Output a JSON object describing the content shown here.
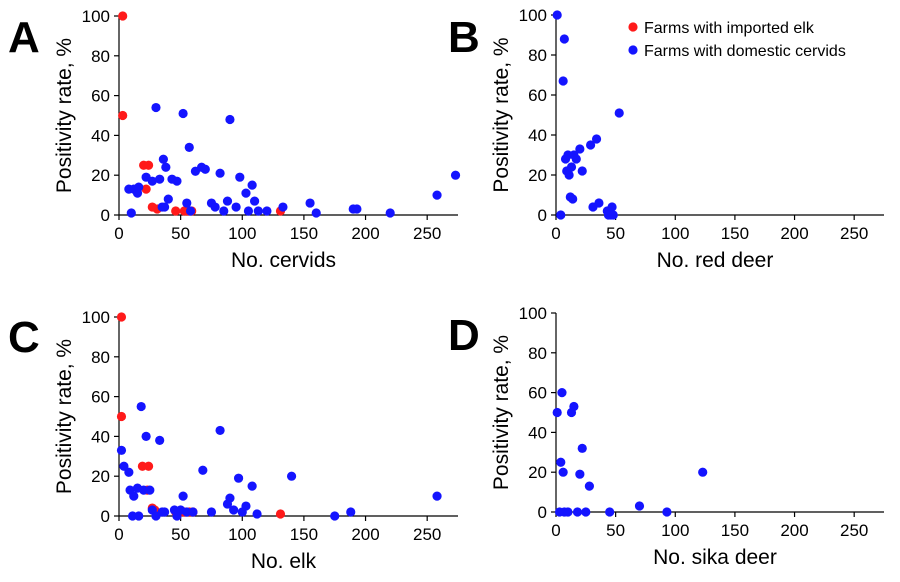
{
  "legend": {
    "items": [
      {
        "label": "Farms with imported elk",
        "color": "#ff1a1a"
      },
      {
        "label": "Farms with domestic cervids",
        "color": "#1414ff"
      }
    ]
  },
  "chart_data": [
    {
      "type": "scatter",
      "panel": "A",
      "xlabel": "No. cervids",
      "ylabel": "Positivity rate, %",
      "xlim": [
        0,
        275
      ],
      "ylim": [
        0,
        100
      ],
      "xticks": [
        0,
        50,
        100,
        150,
        200,
        250
      ],
      "yticks": [
        0,
        20,
        40,
        60,
        80,
        100
      ],
      "series": [
        {
          "name": "Farms with imported elk",
          "color": "#ff1a1a",
          "x": [
            3,
            3,
            20,
            24,
            22,
            27,
            31,
            46,
            53,
            56,
            59,
            131
          ],
          "y": [
            100,
            50,
            25,
            25,
            13,
            4,
            3,
            2,
            2,
            2,
            2,
            2
          ]
        },
        {
          "name": "Farms with domestic cervids",
          "color": "#1414ff",
          "x": [
            8,
            10,
            12,
            15,
            16,
            22,
            27,
            30,
            33,
            35,
            36,
            37,
            38,
            40,
            43,
            47,
            52,
            55,
            57,
            58,
            62,
            67,
            70,
            75,
            78,
            82,
            85,
            88,
            90,
            95,
            98,
            103,
            105,
            108,
            110,
            113,
            120,
            133,
            155,
            160,
            190,
            193,
            220,
            258,
            273
          ],
          "y": [
            13,
            1,
            13,
            11,
            14,
            19,
            17,
            54,
            18,
            4,
            28,
            4,
            24,
            8,
            18,
            17,
            51,
            6,
            34,
            2,
            22,
            24,
            23,
            6,
            4,
            21,
            2,
            7,
            48,
            4,
            19,
            11,
            2,
            15,
            7,
            2,
            2,
            4,
            6,
            1,
            3,
            3,
            1,
            10,
            20
          ]
        }
      ]
    },
    {
      "type": "scatter",
      "panel": "B",
      "xlabel": "No. red deer",
      "ylabel": "Positivity rate, %",
      "xlim": [
        0,
        275
      ],
      "ylim": [
        0,
        100
      ],
      "xticks": [
        0,
        50,
        100,
        150,
        200,
        250
      ],
      "yticks": [
        0,
        20,
        40,
        60,
        80,
        100
      ],
      "series": [
        {
          "name": "Farms with domestic cervids",
          "color": "#1414ff",
          "x": [
            1,
            4,
            6,
            7,
            8,
            9,
            10,
            11,
            12,
            13,
            14,
            15,
            17,
            20,
            22,
            29,
            31,
            34,
            36,
            43,
            44,
            46,
            47,
            48,
            53
          ],
          "y": [
            100,
            0,
            67,
            88,
            28,
            22,
            30,
            20,
            9,
            24,
            8,
            30,
            28,
            33,
            22,
            35,
            4,
            38,
            6,
            2,
            0,
            0,
            4,
            0,
            51
          ]
        }
      ]
    },
    {
      "type": "scatter",
      "panel": "C",
      "xlabel": "No. elk",
      "ylabel": "Positivity rate, %",
      "xlim": [
        0,
        275
      ],
      "ylim": [
        0,
        100
      ],
      "xticks": [
        0,
        50,
        100,
        150,
        200,
        250
      ],
      "yticks": [
        0,
        20,
        40,
        60,
        80,
        100
      ],
      "series": [
        {
          "name": "Farms with imported elk",
          "color": "#ff1a1a",
          "x": [
            2,
            2,
            19,
            24,
            23,
            27,
            29,
            46,
            50,
            53,
            57,
            60,
            131
          ],
          "y": [
            100,
            50,
            25,
            25,
            13,
            4,
            3,
            2,
            2,
            2,
            2,
            2,
            1
          ]
        },
        {
          "name": "Farms with domestic cervids",
          "color": "#1414ff",
          "x": [
            2,
            4,
            8,
            9,
            11,
            12,
            15,
            16,
            18,
            20,
            22,
            25,
            27,
            30,
            33,
            35,
            37,
            45,
            47,
            50,
            52,
            55,
            60,
            68,
            75,
            82,
            88,
            90,
            93,
            97,
            100,
            103,
            108,
            112,
            140,
            175,
            188,
            258
          ],
          "y": [
            33,
            25,
            22,
            13,
            0,
            10,
            14,
            0,
            55,
            13,
            40,
            13,
            3,
            0,
            38,
            2,
            2,
            3,
            0,
            3,
            10,
            2,
            2,
            23,
            2,
            43,
            6,
            9,
            3,
            19,
            2,
            5,
            15,
            1,
            20,
            0,
            2,
            10
          ]
        }
      ]
    },
    {
      "type": "scatter",
      "panel": "D",
      "xlabel": "No. sika deer",
      "ylabel": "Positivity rate, %",
      "xlim": [
        0,
        275
      ],
      "ylim": [
        0,
        100
      ],
      "xticks": [
        0,
        50,
        100,
        150,
        200,
        250
      ],
      "yticks": [
        0,
        20,
        40,
        60,
        80,
        100
      ],
      "series": [
        {
          "name": "Farms with domestic cervids",
          "color": "#1414ff",
          "x": [
            1,
            3,
            4,
            5,
            6,
            7,
            10,
            13,
            15,
            18,
            20,
            22,
            25,
            28,
            45,
            70,
            93,
            123
          ],
          "y": [
            50,
            0,
            25,
            60,
            20,
            0,
            0,
            50,
            53,
            0,
            19,
            32,
            0,
            13,
            0,
            3,
            0,
            20
          ]
        }
      ]
    }
  ]
}
